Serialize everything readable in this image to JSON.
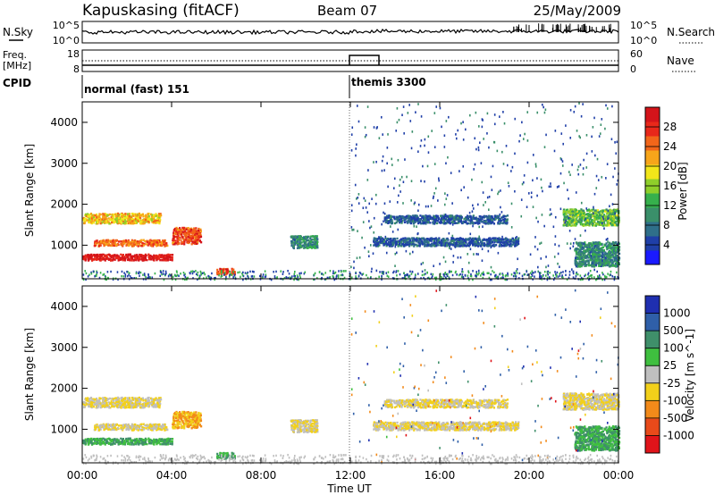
{
  "header": {
    "station": "Kapuskasing (fitACF)",
    "beam": "Beam 07",
    "date": "25/May/2009"
  },
  "noise_panel": {
    "left_label": "N.Sky",
    "right_label": "N.Search",
    "left_ticks": [
      "10^5",
      "10^0"
    ],
    "right_ticks": [
      "10^5",
      "10^0"
    ]
  },
  "freq_panel": {
    "left_label_1": "Freq.",
    "left_label_2": "[MHz]",
    "right_label": "Nave",
    "left_ticks": [
      "18",
      "8"
    ],
    "right_ticks": [
      "60",
      "0"
    ]
  },
  "cpid": {
    "label": "CPID",
    "segments": [
      {
        "start_hour": 0,
        "text": "normal (fast) 151"
      },
      {
        "start_hour": 12,
        "text": "themis 3300"
      }
    ]
  },
  "x_axis": {
    "title": "Time UT",
    "ticks": [
      "00:00",
      "04:00",
      "08:00",
      "12:00",
      "16:00",
      "20:00",
      "00:00"
    ],
    "range_hours": [
      0,
      24
    ]
  },
  "power_panel": {
    "ylabel": "Slant Range [km]",
    "yticks": [
      "1000",
      "2000",
      "3000",
      "4000"
    ],
    "cbar_label": "Power [dB]",
    "cbar_ticks": [
      "4",
      "8",
      "12",
      "16",
      "20",
      "24",
      "28"
    ],
    "cbar_colors": [
      "#1a1aff",
      "#1f3fa8",
      "#2f6f8a",
      "#3a8f6a",
      "#36b04c",
      "#8fcf2a",
      "#f2e61a",
      "#f7a51a",
      "#f2661a",
      "#e8281a",
      "#d4141a"
    ]
  },
  "velocity_panel": {
    "ylabel": "Slant Range [km]",
    "yticks": [
      "1000",
      "2000",
      "3000",
      "4000"
    ],
    "cbar_label": "Velocity [m s^-1]",
    "cbar_ticks": [
      "1000",
      "500",
      "100",
      "25",
      "-25",
      "-100",
      "-500",
      "-1000"
    ],
    "cbar_colors": [
      "#1f2fb0",
      "#2f5fa8",
      "#3f8f6a",
      "#3fbf3f",
      "#bfbfbf",
      "#f2d01a",
      "#f28a1a",
      "#e84a1a",
      "#e0141a"
    ]
  },
  "chart_data": {
    "type": "heatmap",
    "x_range_hours": [
      0,
      24
    ],
    "y_range_km": [
      180,
      4500
    ],
    "echo_regions": [
      {
        "t0": 0.0,
        "t1": 3.5,
        "r0": 1550,
        "r1": 1800,
        "power_db": 18,
        "velocity": -25
      },
      {
        "t0": 0.5,
        "t1": 3.8,
        "r0": 1000,
        "r1": 1150,
        "power_db": 22,
        "velocity": -25
      },
      {
        "t0": 0.0,
        "t1": 4.0,
        "r0": 650,
        "r1": 800,
        "power_db": 28,
        "velocity": 25
      },
      {
        "t0": 4.0,
        "t1": 5.3,
        "r0": 1050,
        "r1": 1450,
        "power_db": 24,
        "velocity": -100
      },
      {
        "t0": 6.0,
        "t1": 6.8,
        "r0": 300,
        "r1": 450,
        "power_db": 24,
        "velocity": 25
      },
      {
        "t0": 9.3,
        "t1": 10.5,
        "r0": 950,
        "r1": 1250,
        "power_db": 8,
        "velocity": -25
      },
      {
        "t0": 13.0,
        "t1": 19.5,
        "r0": 1000,
        "r1": 1200,
        "power_db": 4,
        "velocity": -25
      },
      {
        "t0": 13.5,
        "t1": 19.0,
        "r0": 1550,
        "r1": 1750,
        "power_db": 4,
        "velocity": -25
      },
      {
        "t0": 21.5,
        "t1": 24.0,
        "r0": 1500,
        "r1": 1900,
        "power_db": 12,
        "velocity": -25
      },
      {
        "t0": 22.0,
        "t1": 24.0,
        "r0": 500,
        "r1": 1100,
        "power_db": 8,
        "velocity": 25
      }
    ]
  }
}
